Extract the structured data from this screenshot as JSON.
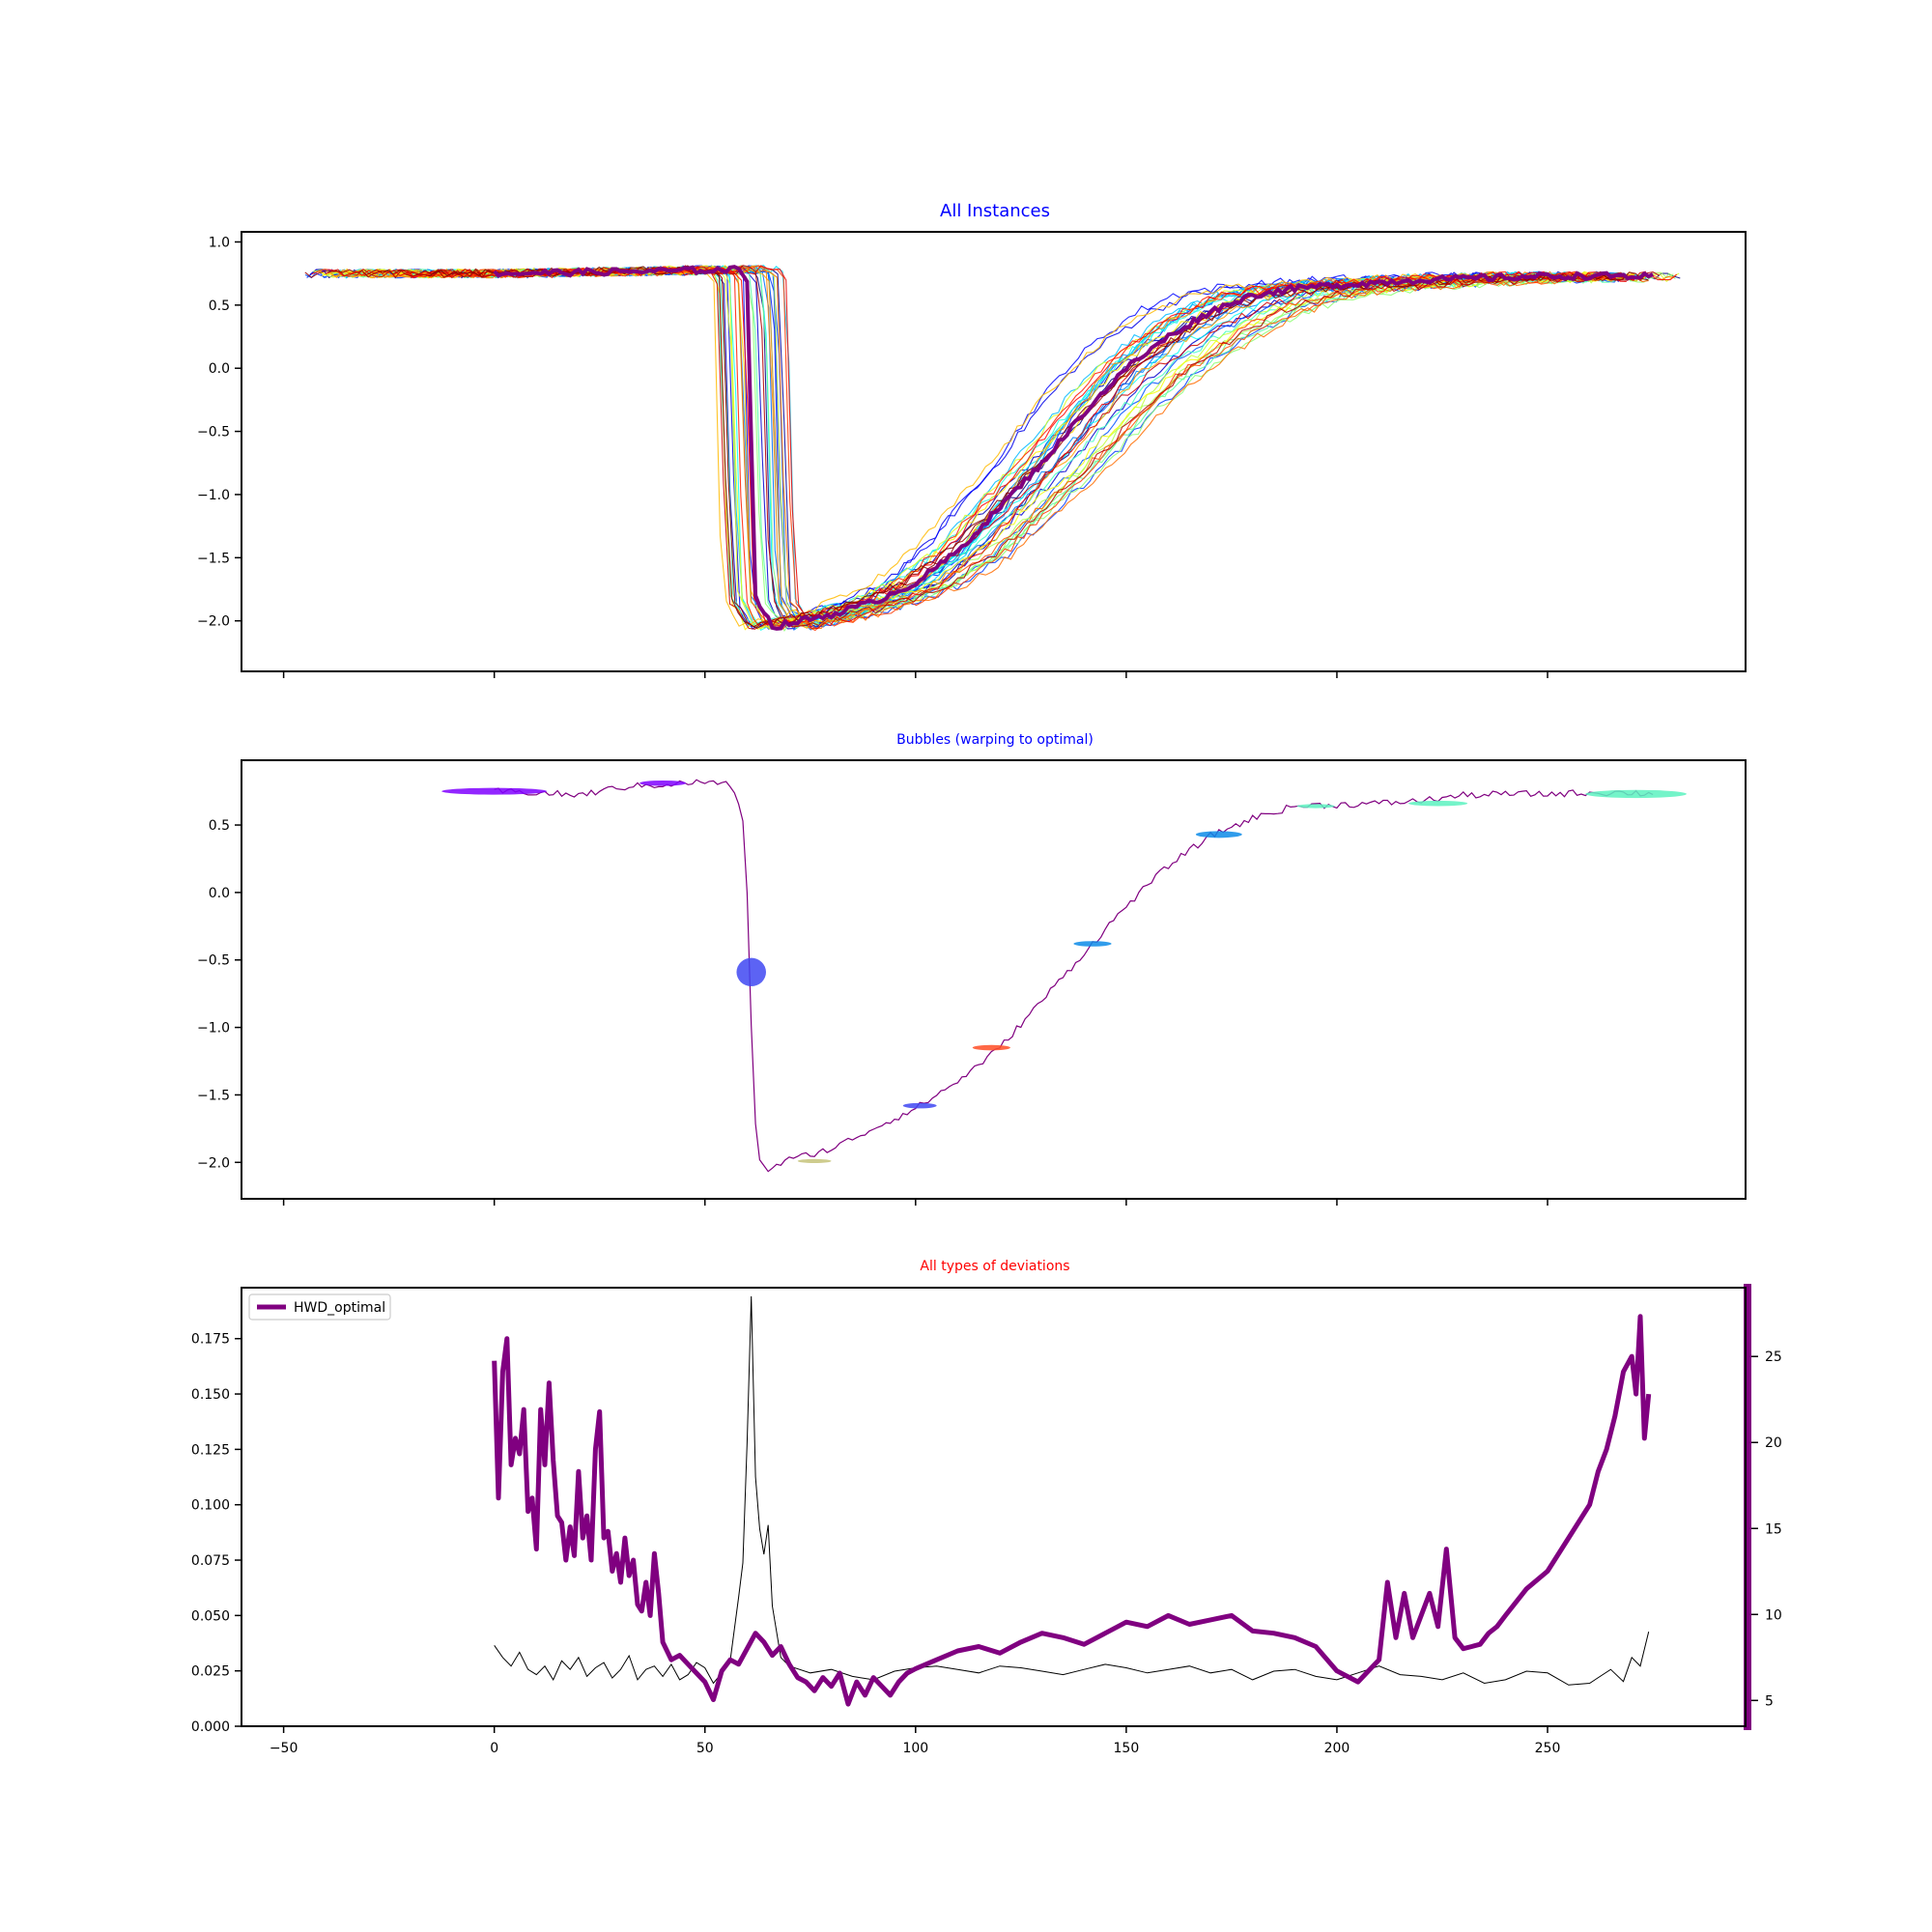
{
  "colors": {
    "title_blue": "#0000ff",
    "title_red": "#ff0000",
    "optimal": "#800080",
    "axis": "#000000",
    "secondary_axis": "#800080"
  },
  "chart_data": [
    {
      "type": "line",
      "title": "All Instances",
      "xlabel": "",
      "ylabel": "",
      "xlim": [
        -60,
        297
      ],
      "ylim": [
        -2.4,
        1.08
      ],
      "yticks": [
        "1.0",
        "0.5",
        "0.0",
        "−0.5",
        "−1.0",
        "−1.5",
        "−2.0"
      ],
      "ytick_values": [
        1.0,
        0.5,
        0.0,
        -0.5,
        -1.0,
        -1.5,
        -2.0
      ],
      "xtick_values": [
        -50,
        0,
        50,
        100,
        150,
        200,
        250
      ],
      "x_tick_labels_visible": false,
      "instance_count": 40,
      "series_description": "rainbow-colored thin instances, plus thick purple optimal series",
      "optimal_series": {
        "name": "optimal",
        "x": [
          0,
          20,
          40,
          55,
          58,
          60,
          62,
          66,
          70,
          80,
          90,
          100,
          110,
          120,
          130,
          140,
          150,
          160,
          170,
          180,
          190,
          200,
          210,
          220,
          230,
          240,
          250,
          260,
          270,
          275
        ],
        "y": [
          0.75,
          0.76,
          0.77,
          0.78,
          0.78,
          0.7,
          -1.8,
          -2.05,
          -2.02,
          -1.95,
          -1.85,
          -1.7,
          -1.45,
          -1.1,
          -0.75,
          -0.35,
          0.0,
          0.25,
          0.45,
          0.58,
          0.63,
          0.66,
          0.68,
          0.7,
          0.71,
          0.72,
          0.73,
          0.73,
          0.73,
          0.72
        ]
      }
    },
    {
      "type": "scatter",
      "title": "Bubbles (warping to optimal)",
      "xlabel": "",
      "ylabel": "",
      "xlim": [
        -60,
        297
      ],
      "ylim": [
        -2.27,
        0.98
      ],
      "yticks": [
        "0.5",
        "0.0",
        "−0.5",
        "−1.0",
        "−1.5",
        "−2.0"
      ],
      "ytick_values": [
        0.5,
        0.0,
        -0.5,
        -1.0,
        -1.5,
        -2.0
      ],
      "xtick_values": [
        -50,
        0,
        50,
        100,
        150,
        200,
        250
      ],
      "x_tick_labels_visible": false,
      "line_series": {
        "name": "optimal",
        "x": [
          0,
          10,
          20,
          30,
          40,
          50,
          56,
          59,
          60,
          61,
          62,
          63,
          65,
          70,
          80,
          90,
          100,
          110,
          120,
          130,
          140,
          150,
          160,
          170,
          180,
          190,
          200,
          210,
          220,
          230,
          240,
          250,
          260,
          270,
          275
        ],
        "y": [
          0.75,
          0.74,
          0.72,
          0.78,
          0.8,
          0.82,
          0.8,
          0.55,
          0.0,
          -1.0,
          -1.7,
          -2.0,
          -2.05,
          -1.98,
          -1.9,
          -1.75,
          -1.6,
          -1.4,
          -1.15,
          -0.8,
          -0.45,
          -0.1,
          0.2,
          0.42,
          0.55,
          0.64,
          0.65,
          0.66,
          0.68,
          0.72,
          0.73,
          0.73,
          0.74,
          0.74,
          0.73
        ]
      },
      "bubbles": [
        {
          "x": 0,
          "y": 0.75,
          "width": 25,
          "height": 0.05,
          "color": "#7f00ff"
        },
        {
          "x": 40,
          "y": 0.81,
          "width": 11,
          "height": 0.04,
          "color": "#7f00ff"
        },
        {
          "x": 61,
          "y": -0.59,
          "width": 7,
          "height": 0.21,
          "color": "#3f48f2"
        },
        {
          "x": 76,
          "y": -1.99,
          "width": 8,
          "height": 0.03,
          "color": "#c6c37a"
        },
        {
          "x": 101,
          "y": -1.58,
          "width": 8,
          "height": 0.04,
          "color": "#3f48f2"
        },
        {
          "x": 118,
          "y": -1.15,
          "width": 9,
          "height": 0.04,
          "color": "#ff4d26"
        },
        {
          "x": 142,
          "y": -0.38,
          "width": 9,
          "height": 0.04,
          "color": "#0c8be8"
        },
        {
          "x": 172,
          "y": 0.43,
          "width": 11,
          "height": 0.05,
          "color": "#0c8be8"
        },
        {
          "x": 195,
          "y": 0.64,
          "width": 9,
          "height": 0.03,
          "color": "#5cf2bf"
        },
        {
          "x": 224,
          "y": 0.66,
          "width": 14,
          "height": 0.04,
          "color": "#5cf2bf"
        },
        {
          "x": 271,
          "y": 0.73,
          "width": 24,
          "height": 0.06,
          "color": "#5cf2bf"
        }
      ]
    },
    {
      "type": "line",
      "title": "All types of deviations",
      "xlabel": "",
      "ylabel": "",
      "xlim": [
        -60,
        297
      ],
      "ylim": [
        0.0,
        0.198
      ],
      "yticks": [
        "0.175",
        "0.150",
        "0.125",
        "0.100",
        "0.075",
        "0.050",
        "0.025",
        "0.000"
      ],
      "ytick_values": [
        0.175,
        0.15,
        0.125,
        0.1,
        0.075,
        0.05,
        0.025,
        0.0
      ],
      "xticks": [
        "−50",
        "0",
        "50",
        "100",
        "150",
        "200",
        "250"
      ],
      "xtick_values": [
        -50,
        0,
        50,
        100,
        150,
        200,
        250
      ],
      "secondary_y": {
        "ylim": [
          3.5,
          29.0
        ],
        "yticks": [
          "25",
          "20",
          "15",
          "10",
          "5"
        ],
        "ytick_values": [
          25,
          20,
          15,
          10,
          5
        ]
      },
      "legend": {
        "position": "upper-left",
        "entries": [
          "HWD_optimal"
        ]
      },
      "series": [
        {
          "name": "HWD_optimal",
          "axis": "left",
          "color": "#800080",
          "x": [
            0,
            1,
            2,
            3,
            4,
            5,
            6,
            7,
            8,
            9,
            10,
            11,
            12,
            13,
            14,
            15,
            16,
            17,
            18,
            19,
            20,
            21,
            22,
            23,
            24,
            25,
            26,
            27,
            28,
            29,
            30,
            31,
            32,
            33,
            34,
            35,
            36,
            37,
            38,
            39,
            40,
            42,
            44,
            46,
            48,
            50,
            52,
            54,
            56,
            58,
            60,
            62,
            64,
            66,
            68,
            70,
            72,
            74,
            76,
            78,
            80,
            82,
            84,
            86,
            88,
            90,
            92,
            94,
            96,
            98,
            100,
            105,
            110,
            115,
            120,
            125,
            130,
            135,
            140,
            145,
            150,
            155,
            160,
            165,
            170,
            175,
            180,
            185,
            190,
            195,
            200,
            205,
            210,
            212,
            214,
            216,
            218,
            220,
            222,
            224,
            226,
            228,
            230,
            232,
            234,
            236,
            238,
            240,
            245,
            250,
            255,
            260,
            262,
            264,
            266,
            268,
            270,
            271,
            272,
            273,
            274
          ],
          "y": [
            0.165,
            0.103,
            0.16,
            0.175,
            0.118,
            0.13,
            0.123,
            0.143,
            0.097,
            0.103,
            0.08,
            0.143,
            0.118,
            0.155,
            0.12,
            0.095,
            0.092,
            0.075,
            0.09,
            0.077,
            0.115,
            0.085,
            0.095,
            0.075,
            0.125,
            0.142,
            0.085,
            0.088,
            0.07,
            0.078,
            0.065,
            0.085,
            0.068,
            0.075,
            0.055,
            0.052,
            0.065,
            0.05,
            0.078,
            0.06,
            0.038,
            0.03,
            0.032,
            0.028,
            0.024,
            0.02,
            0.012,
            0.025,
            0.03,
            0.028,
            0.035,
            0.042,
            0.038,
            0.032,
            0.036,
            0.028,
            0.022,
            0.02,
            0.016,
            0.022,
            0.018,
            0.024,
            0.01,
            0.02,
            0.014,
            0.022,
            0.018,
            0.014,
            0.02,
            0.024,
            0.026,
            0.03,
            0.034,
            0.036,
            0.033,
            0.038,
            0.042,
            0.04,
            0.037,
            0.042,
            0.047,
            0.045,
            0.05,
            0.046,
            0.048,
            0.05,
            0.043,
            0.042,
            0.04,
            0.036,
            0.025,
            0.02,
            0.03,
            0.065,
            0.04,
            0.06,
            0.04,
            0.05,
            0.06,
            0.045,
            0.08,
            0.04,
            0.035,
            0.036,
            0.037,
            0.042,
            0.045,
            0.05,
            0.062,
            0.07,
            0.085,
            0.1,
            0.115,
            0.125,
            0.14,
            0.16,
            0.167,
            0.15,
            0.185,
            0.13,
            0.15
          ]
        },
        {
          "name": "deviation",
          "axis": "right",
          "color": "#000000",
          "x": [
            0,
            2,
            4,
            6,
            8,
            10,
            12,
            14,
            16,
            18,
            20,
            22,
            24,
            26,
            28,
            30,
            32,
            34,
            36,
            38,
            40,
            42,
            44,
            46,
            48,
            50,
            52,
            54,
            56,
            58,
            59,
            60,
            61,
            62,
            63,
            64,
            65,
            66,
            68,
            70,
            75,
            80,
            85,
            90,
            95,
            100,
            105,
            110,
            115,
            120,
            125,
            130,
            135,
            140,
            145,
            150,
            155,
            160,
            165,
            170,
            175,
            180,
            185,
            190,
            195,
            200,
            205,
            210,
            215,
            220,
            225,
            230,
            235,
            240,
            245,
            250,
            255,
            260,
            265,
            268,
            270,
            272,
            274
          ],
          "y": [
            8.2,
            7.5,
            7.0,
            7.8,
            6.8,
            6.5,
            7.0,
            6.2,
            7.3,
            6.8,
            7.5,
            6.4,
            6.9,
            7.2,
            6.3,
            6.8,
            7.6,
            6.2,
            6.8,
            7.0,
            6.4,
            7.1,
            6.2,
            6.5,
            7.2,
            6.9,
            6.0,
            6.6,
            7.3,
            11.0,
            13.0,
            20.0,
            28.5,
            18.0,
            15.0,
            13.5,
            15.2,
            10.5,
            7.5,
            7.0,
            6.6,
            6.8,
            6.4,
            6.2,
            6.7,
            6.9,
            7.0,
            6.8,
            6.6,
            7.0,
            6.9,
            6.7,
            6.5,
            6.8,
            7.1,
            6.9,
            6.6,
            6.8,
            7.0,
            6.6,
            6.8,
            6.2,
            6.7,
            6.8,
            6.4,
            6.2,
            6.6,
            7.0,
            6.5,
            6.4,
            6.2,
            6.6,
            6.0,
            6.2,
            6.7,
            6.6,
            5.9,
            6.0,
            6.8,
            6.1,
            7.5,
            7.0,
            9.0
          ]
        }
      ]
    }
  ]
}
